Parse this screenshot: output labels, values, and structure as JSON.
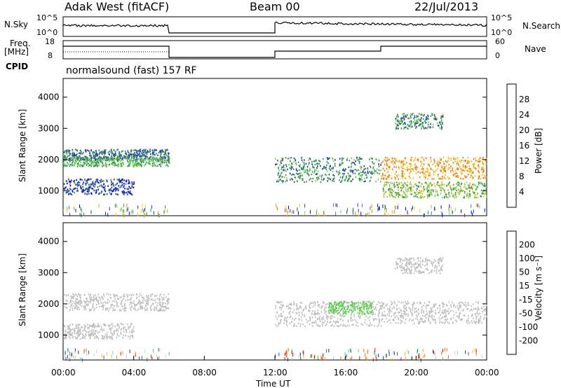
{
  "header": {
    "title_left": "Adak West (fitACF)",
    "title_center": "Beam 00",
    "title_right": "22/Jul/2013"
  },
  "strip_labels": {
    "nsky": "N.Sky",
    "freq_top": "Freq.",
    "freq_unit": "[MHz]",
    "cpid": "CPID",
    "nsearch": "N.Search",
    "nave": "Nave"
  },
  "strip_ticks": {
    "noise_left": [
      "10^5",
      "10^0"
    ],
    "noise_right": [
      "10^5",
      "10^0"
    ],
    "freq_left": [
      "18",
      "8"
    ],
    "nave_right": [
      "60",
      "0"
    ]
  },
  "cpid_text": "normalsound (fast) 157 RF",
  "colors": {
    "power": [
      "#0000ff",
      "#1a3fa8",
      "#3a8a5a",
      "#6fcf50",
      "#f0c020",
      "#f07a10",
      "#ff2a00",
      "#ff0000"
    ],
    "velocity": [
      "#ff0000",
      "#ff6a00",
      "#ffb000",
      "#bfbfbf",
      "#cfcfcf",
      "#5ad04a",
      "#2a7a3a",
      "#1a2aa0",
      "#1a4ac8"
    ]
  },
  "chart_data": [
    {
      "type": "heatmap",
      "name": "power",
      "xlabel": "",
      "ylabel": "Slant Range [km]",
      "ylim": [
        200,
        4600
      ],
      "y_ticks": [
        "1000",
        "2000",
        "3000",
        "4000"
      ],
      "colorbar_label": "Power [dB]",
      "colorbar_ticks": [
        "4",
        "8",
        "12",
        "16",
        "20",
        "24",
        "28"
      ],
      "echo_regions": [
        {
          "t_start": 0.0,
          "t_end": 6.0,
          "range_start": 2000,
          "range_end": 2350,
          "value": 8
        },
        {
          "t_start": 0.0,
          "t_end": 6.0,
          "range_start": 1800,
          "range_end": 2100,
          "value": 12
        },
        {
          "t_start": 0.0,
          "t_end": 4.0,
          "range_start": 900,
          "range_end": 1400,
          "value": 6
        },
        {
          "t_start": 12.0,
          "t_end": 18.0,
          "range_start": 1300,
          "range_end": 2100,
          "value": 10
        },
        {
          "t_start": 18.0,
          "t_end": 24.0,
          "range_start": 1400,
          "range_end": 2100,
          "value": 20
        },
        {
          "t_start": 18.0,
          "t_end": 24.0,
          "range_start": 800,
          "range_end": 1300,
          "value": 14
        },
        {
          "t_start": 18.8,
          "t_end": 21.5,
          "range_start": 3000,
          "range_end": 3500,
          "value": 10
        }
      ]
    },
    {
      "type": "heatmap",
      "name": "velocity",
      "xlabel": "Time UT",
      "ylabel": "Slant Range [km]",
      "ylim": [
        200,
        4600
      ],
      "x_ticks": [
        "00:00",
        "04:00",
        "08:00",
        "12:00",
        "16:00",
        "20:00",
        "00:00"
      ],
      "y_ticks": [
        "1000",
        "2000",
        "3000",
        "4000"
      ],
      "colorbar_label": "Velocity [m s⁻¹]",
      "colorbar_ticks": [
        "200",
        "100",
        "50",
        "15",
        "-15",
        "-50",
        "-100",
        "-200"
      ],
      "echo_regions": [
        {
          "t_start": 0.0,
          "t_end": 6.0,
          "range_start": 1800,
          "range_end": 2350,
          "value": 0
        },
        {
          "t_start": 0.0,
          "t_end": 4.0,
          "range_start": 900,
          "range_end": 1400,
          "value": 0
        },
        {
          "t_start": 12.0,
          "t_end": 18.0,
          "range_start": 1300,
          "range_end": 2100,
          "value": 0
        },
        {
          "t_start": 15.0,
          "t_end": 17.5,
          "range_start": 1700,
          "range_end": 2100,
          "value": 30
        },
        {
          "t_start": 18.0,
          "t_end": 24.0,
          "range_start": 1400,
          "range_end": 2100,
          "value": 0
        },
        {
          "t_start": 18.8,
          "t_end": 21.5,
          "range_start": 3000,
          "range_end": 3500,
          "value": 0
        }
      ]
    }
  ]
}
